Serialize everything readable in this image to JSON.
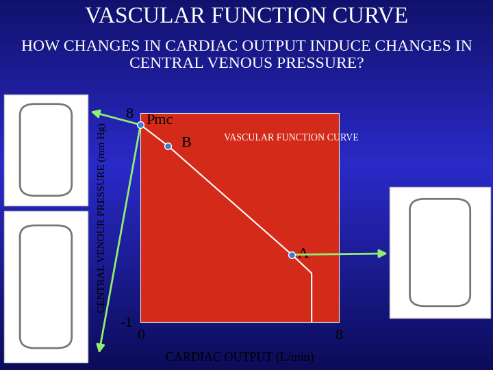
{
  "title": "VASCULAR FUNCTION CURVE",
  "subtitle": "HOW CHANGES IN CARDIAC OUTPUT INDUCE CHANGES IN CENTRAL VENOUS PRESSURE?",
  "chart_data": {
    "type": "line",
    "x_label": "CARDIAC OUTPUT (L/min)",
    "y_label": "CENTRAL VENOUR PRESSURE (mm Hg)",
    "series": [
      {
        "name": "VASCULAR FUNCTION CURVE",
        "color": "#ffffff",
        "x": [
          0,
          1.1,
          6.1,
          6.9,
          6.9
        ],
        "values": [
          7.5,
          6.6,
          1.9,
          1.1,
          -1
        ]
      }
    ],
    "points": [
      {
        "label": "Pmc",
        "x": 0,
        "y": 7.5
      },
      {
        "label": "B",
        "x": 1.1,
        "y": 6.6
      },
      {
        "label": "A",
        "x": 6.1,
        "y": 1.9
      }
    ],
    "xlim": [
      0,
      8
    ],
    "ylim": [
      -1,
      8
    ],
    "xticks": [
      0,
      8
    ],
    "yticks": [
      -1,
      8
    ]
  }
}
